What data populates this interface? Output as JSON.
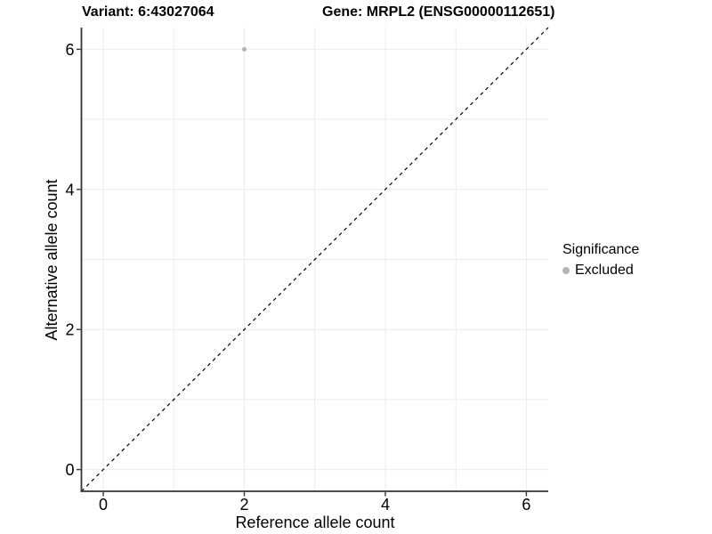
{
  "chart_data": {
    "type": "scatter",
    "titles": {
      "variant": "Variant: 6:43027064",
      "gene": "Gene: MRPL2 (ENSG00000112651)"
    },
    "xlabel": "Reference allele count",
    "ylabel": "Alternative allele count",
    "xlim": [
      -0.31,
      6.31
    ],
    "ylim": [
      -0.31,
      6.31
    ],
    "xticks": [
      0,
      2,
      4,
      6
    ],
    "yticks": [
      0,
      2,
      4,
      6
    ],
    "minor_grid_x": [
      1,
      3,
      5
    ],
    "minor_grid_y": [
      1,
      3,
      5
    ],
    "grid": true,
    "legend_position": "right",
    "series": [
      {
        "name": "Excluded",
        "color": "#b4b4b4",
        "points": [
          {
            "x": 2,
            "y": 6
          }
        ]
      }
    ],
    "reference_line": {
      "slope": 1,
      "intercept": 0,
      "style": "dashed",
      "color": "#000000"
    },
    "legend": {
      "title": "Significance",
      "items": [
        {
          "label": "Excluded",
          "color": "#b4b4b4"
        }
      ]
    },
    "colors": {
      "grid": "#ececec",
      "axis_line": "#333333",
      "text": "#000000",
      "point": "#b4b4b4",
      "background": "#ffffff"
    }
  }
}
